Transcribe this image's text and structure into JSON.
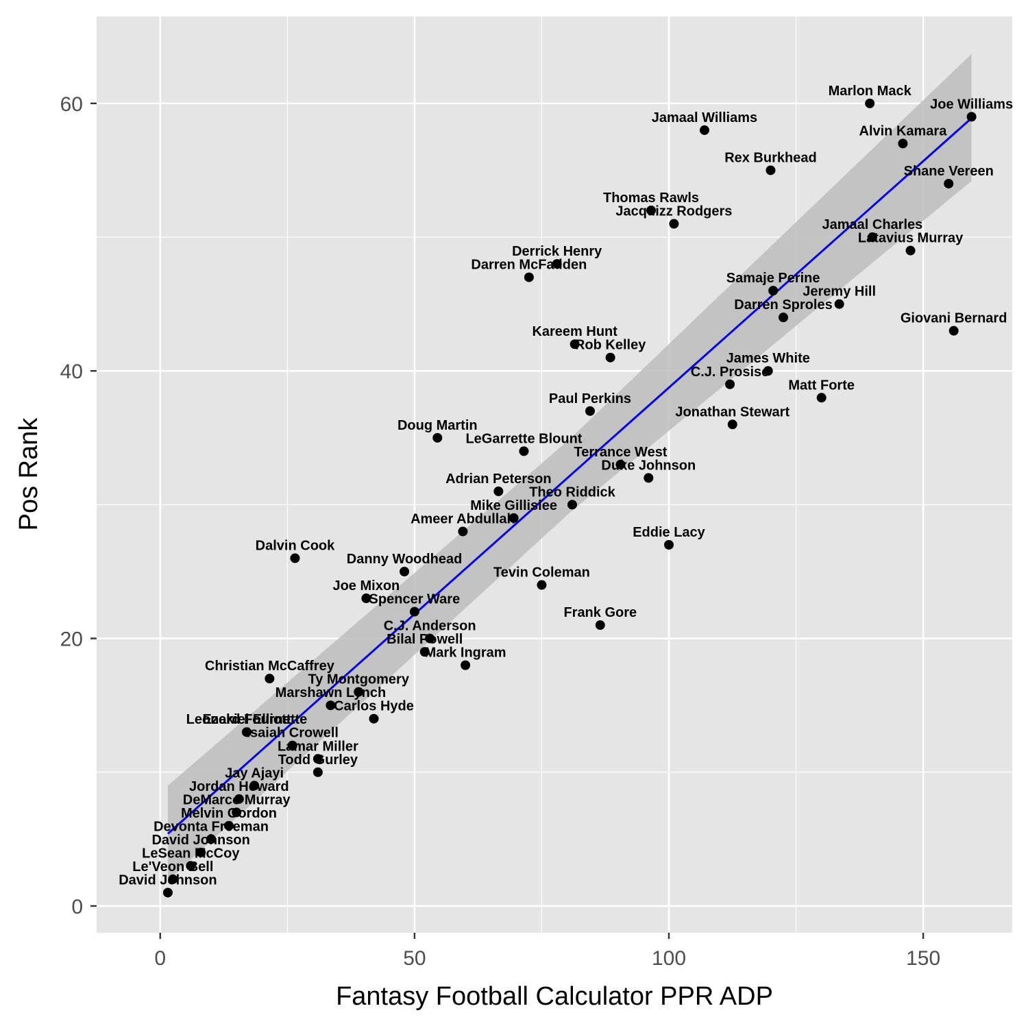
{
  "chart_data": {
    "type": "scatter",
    "xlabel": "Fantasy Football Calculator PPR ADP",
    "ylabel": "Pos Rank",
    "xlim": [
      -12.5,
      167.5
    ],
    "ylim": [
      -2,
      66.5
    ],
    "xticks": [
      0,
      50,
      100,
      150
    ],
    "yticks": [
      0,
      20,
      40,
      60
    ],
    "xtick_labels": [
      "0",
      "50",
      "100",
      "150"
    ],
    "ytick_labels": [
      "0",
      "20",
      "40",
      "60"
    ],
    "grid": true,
    "trendline": {
      "method": "linear",
      "color": "#0000ff",
      "x": [
        1.5,
        159.5
      ],
      "y": [
        5.4,
        58.9
      ]
    },
    "confidence_band": {
      "color": "#bdbdbd",
      "x": [
        1.5,
        80.5,
        159.5
      ],
      "lower": [
        1.9,
        29.4,
        54.2
      ],
      "upper": [
        9.0,
        34.9,
        63.7
      ]
    },
    "colors": {
      "panel": "#e5e5e5",
      "grid": "#ffffff",
      "points": "#000000"
    },
    "points": [
      {
        "name": "David Johnson",
        "x": 1.5,
        "y": 1
      },
      {
        "name": "Le'Veon Bell",
        "x": 2.5,
        "y": 2
      },
      {
        "name": "LeSean McCoy",
        "x": 6,
        "y": 3
      },
      {
        "name": "David Johnson",
        "x": 8,
        "y": 4
      },
      {
        "name": "Devonta Freeman",
        "x": 10,
        "y": 5
      },
      {
        "name": "Melvin Gordon",
        "x": 13.5,
        "y": 6
      },
      {
        "name": "DeMarco Murray",
        "x": 15,
        "y": 7
      },
      {
        "name": "Jordan Howard",
        "x": 15.5,
        "y": 8
      },
      {
        "name": "Jay Ajayi",
        "x": 18.5,
        "y": 9
      },
      {
        "name": "Todd Gurley",
        "x": 31,
        "y": 10
      },
      {
        "name": "Lamar Miller",
        "x": 31,
        "y": 11
      },
      {
        "name": "Isaiah Crowell",
        "x": 26,
        "y": 12
      },
      {
        "name": "Leonard Fournette",
        "x": 17,
        "y": 13
      },
      {
        "name": "Ezekiel Elliott",
        "x": 17,
        "y": 13
      },
      {
        "name": "Carlos Hyde",
        "x": 42,
        "y": 14
      },
      {
        "name": "Marshawn Lynch",
        "x": 33.5,
        "y": 15
      },
      {
        "name": "Ty Montgomery",
        "x": 39,
        "y": 16
      },
      {
        "name": "Christian McCaffrey",
        "x": 21.5,
        "y": 17
      },
      {
        "name": "Mark Ingram",
        "x": 60,
        "y": 18
      },
      {
        "name": "Bilal Powell",
        "x": 52,
        "y": 19
      },
      {
        "name": "C.J. Anderson",
        "x": 53,
        "y": 20
      },
      {
        "name": "Frank Gore",
        "x": 86.5,
        "y": 21
      },
      {
        "name": "Spencer Ware",
        "x": 50,
        "y": 22
      },
      {
        "name": "Joe Mixon",
        "x": 40.5,
        "y": 23
      },
      {
        "name": "Tevin Coleman",
        "x": 75,
        "y": 24
      },
      {
        "name": "Danny Woodhead",
        "x": 48,
        "y": 25
      },
      {
        "name": "Dalvin Cook",
        "x": 26.5,
        "y": 26
      },
      {
        "name": "Eddie Lacy",
        "x": 100,
        "y": 27
      },
      {
        "name": "Ameer Abdullah",
        "x": 59.5,
        "y": 28
      },
      {
        "name": "Mike Gillislee",
        "x": 69.5,
        "y": 29
      },
      {
        "name": "Theo Riddick",
        "x": 81,
        "y": 30
      },
      {
        "name": "Adrian Peterson",
        "x": 66.5,
        "y": 31
      },
      {
        "name": "Duke Johnson",
        "x": 96,
        "y": 32
      },
      {
        "name": "Terrance West",
        "x": 90.5,
        "y": 33
      },
      {
        "name": "LeGarrette Blount",
        "x": 71.5,
        "y": 34
      },
      {
        "name": "Doug Martin",
        "x": 54.5,
        "y": 35
      },
      {
        "name": "Jonathan Stewart",
        "x": 112.5,
        "y": 36
      },
      {
        "name": "Paul Perkins",
        "x": 84.5,
        "y": 37
      },
      {
        "name": "Matt Forte",
        "x": 130,
        "y": 38
      },
      {
        "name": "C.J. Prosise",
        "x": 112,
        "y": 39
      },
      {
        "name": "James White",
        "x": 119.5,
        "y": 40
      },
      {
        "name": "Rob Kelley",
        "x": 88.5,
        "y": 41
      },
      {
        "name": "Kareem Hunt",
        "x": 81.5,
        "y": 42
      },
      {
        "name": "Giovani Bernard",
        "x": 156,
        "y": 43
      },
      {
        "name": "Darren Sproles",
        "x": 122.5,
        "y": 44
      },
      {
        "name": "Jeremy Hill",
        "x": 133.5,
        "y": 45
      },
      {
        "name": "Samaje Perine",
        "x": 120.5,
        "y": 46
      },
      {
        "name": "Darren McFadden",
        "x": 72.5,
        "y": 47
      },
      {
        "name": "Derrick Henry",
        "x": 78,
        "y": 48
      },
      {
        "name": "Latavius Murray",
        "x": 147.5,
        "y": 49
      },
      {
        "name": "Jamaal Charles",
        "x": 140,
        "y": 50
      },
      {
        "name": "Jacquizz Rodgers",
        "x": 101,
        "y": 51
      },
      {
        "name": "Thomas Rawls",
        "x": 96.5,
        "y": 52
      },
      {
        "name": "Shane Vereen",
        "x": 155,
        "y": 54
      },
      {
        "name": "Rex Burkhead",
        "x": 120,
        "y": 55
      },
      {
        "name": "Alvin Kamara",
        "x": 146,
        "y": 57
      },
      {
        "name": "Jamaal Williams",
        "x": 107,
        "y": 58
      },
      {
        "name": "Joe Williams",
        "x": 159.5,
        "y": 59
      },
      {
        "name": "Marlon Mack",
        "x": 139.5,
        "y": 60
      }
    ]
  }
}
